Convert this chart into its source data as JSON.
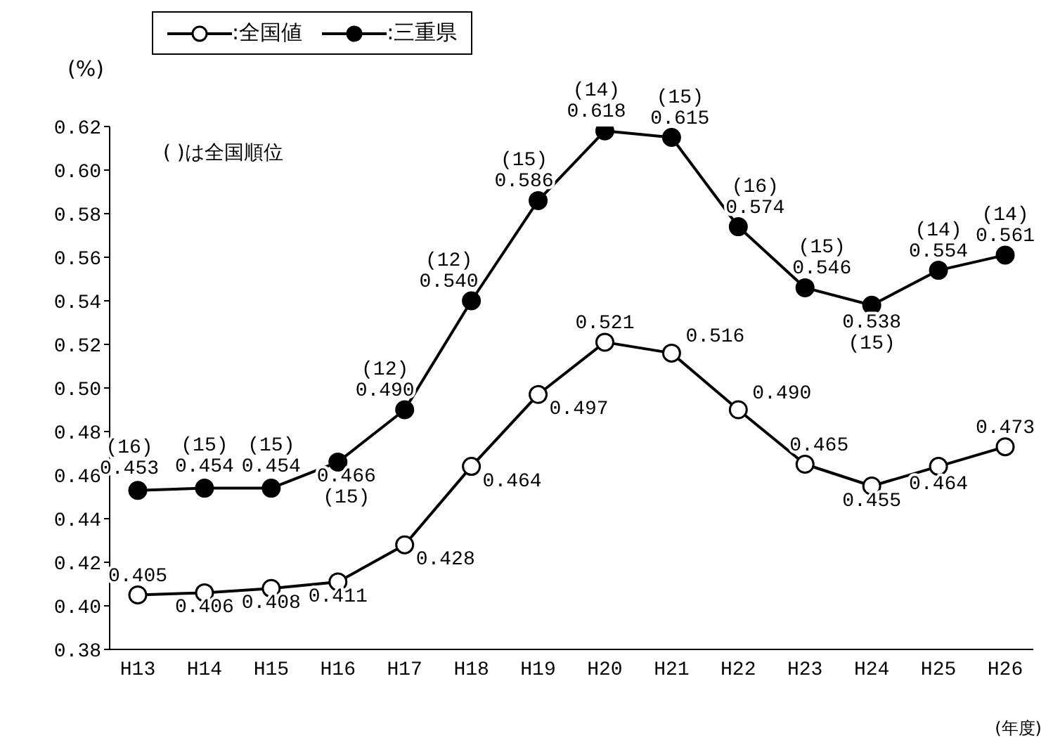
{
  "chart_data": {
    "type": "line",
    "ylabel": "(%)",
    "xlabel": "(年度)",
    "annotations": [
      "( )は全国順位"
    ],
    "categories": [
      "H13",
      "H14",
      "H15",
      "H16",
      "H17",
      "H18",
      "H19",
      "H20",
      "H21",
      "H22",
      "H23",
      "H24",
      "H25",
      "H26"
    ],
    "series": [
      {
        "name": ":全国値",
        "color": "#000000",
        "values": [
          0.405,
          0.406,
          0.408,
          0.411,
          0.428,
          0.464,
          0.497,
          0.521,
          0.516,
          0.49,
          0.465,
          0.455,
          0.464,
          0.473
        ],
        "value_labels": [
          "0.405",
          "0.406",
          "0.408",
          "0.411",
          "0.428",
          "0.464",
          "0.497",
          "0.521",
          "0.516",
          "0.490",
          "0.465",
          "0.455",
          "0.464",
          "0.473"
        ]
      },
      {
        "name": ":三重県",
        "color": "#000000",
        "values": [
          0.453,
          0.454,
          0.454,
          0.466,
          0.49,
          0.54,
          0.586,
          0.618,
          0.615,
          0.574,
          0.546,
          0.538,
          0.554,
          0.561
        ],
        "value_labels": [
          "(16)\n0.453",
          "(15)\n0.454",
          "(15)\n0.454",
          "0.466\n(15)",
          "(12)\n0.490",
          "(12)\n0.540",
          "(15)\n0.586",
          "(14)\n0.618",
          "(15)\n0.615",
          "(16)\n0.574",
          "(15)\n0.546",
          "0.538\n(15)",
          "(14)\n0.554",
          "(14)\n0.561"
        ]
      }
    ],
    "ylim": [
      0.38,
      0.62
    ],
    "yticks": [
      {
        "value": 0.38,
        "label": "0.38"
      },
      {
        "value": 0.4,
        "label": "0.40"
      },
      {
        "value": 0.42,
        "label": "0.42"
      },
      {
        "value": 0.44,
        "label": "0.44"
      },
      {
        "value": 0.46,
        "label": "0.46"
      },
      {
        "value": 0.48,
        "label": "0.48"
      },
      {
        "value": 0.5,
        "label": "0.50"
      },
      {
        "value": 0.52,
        "label": "0.52"
      },
      {
        "value": 0.54,
        "label": "0.54"
      },
      {
        "value": 0.56,
        "label": "0.56"
      },
      {
        "value": 0.58,
        "label": "0.58"
      },
      {
        "value": 0.6,
        "label": "0.60"
      },
      {
        "value": 0.62,
        "label": "0.62"
      }
    ],
    "legend": "top",
    "marker": "circle",
    "line_style": "solid"
  }
}
